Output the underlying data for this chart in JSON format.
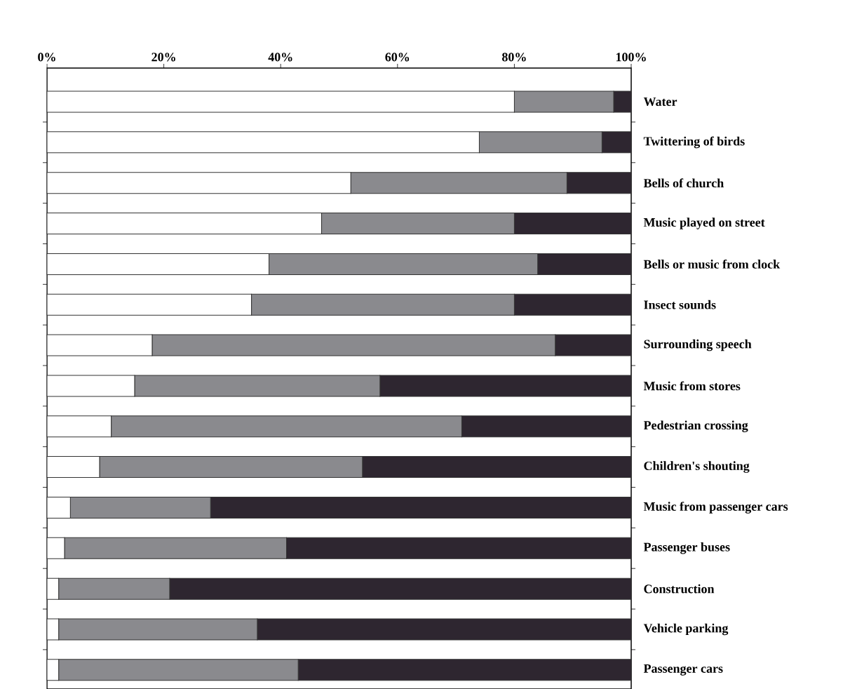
{
  "chart_data": {
    "type": "bar",
    "orientation": "horizontal",
    "stacked": true,
    "categories": [
      "Water",
      "Twittering of birds",
      "Bells of church",
      "Music played on street",
      "Bells or music from clock",
      "Insect sounds",
      "Surrounding speech",
      "Music from stores",
      "Pedestrian crossing",
      "Children's shouting",
      "Music from passenger cars",
      "Passenger buses",
      "Construction",
      "Vehicle parking",
      "Passenger cars"
    ],
    "series": [
      {
        "color": "#ffffff",
        "values": [
          80,
          74,
          52,
          47,
          38,
          35,
          18,
          15,
          11,
          9,
          4,
          3,
          2,
          2,
          2
        ]
      },
      {
        "color": "#8a8a8e",
        "values": [
          17,
          21,
          37,
          33,
          46,
          45,
          69,
          42,
          60,
          45,
          24,
          38,
          19,
          34,
          41
        ]
      },
      {
        "color": "#2e2630",
        "values": [
          3,
          5,
          11,
          20,
          16,
          20,
          13,
          43,
          29,
          46,
          72,
          59,
          79,
          64,
          57
        ]
      }
    ],
    "xlim": [
      0,
      100
    ],
    "xticks": [
      {
        "value": 0,
        "label": "0%"
      },
      {
        "value": 20,
        "label": "20%"
      },
      {
        "value": 40,
        "label": "40%"
      },
      {
        "value": 60,
        "label": "60%"
      },
      {
        "value": 80,
        "label": "80%"
      },
      {
        "value": 100,
        "label": "100%"
      }
    ]
  }
}
